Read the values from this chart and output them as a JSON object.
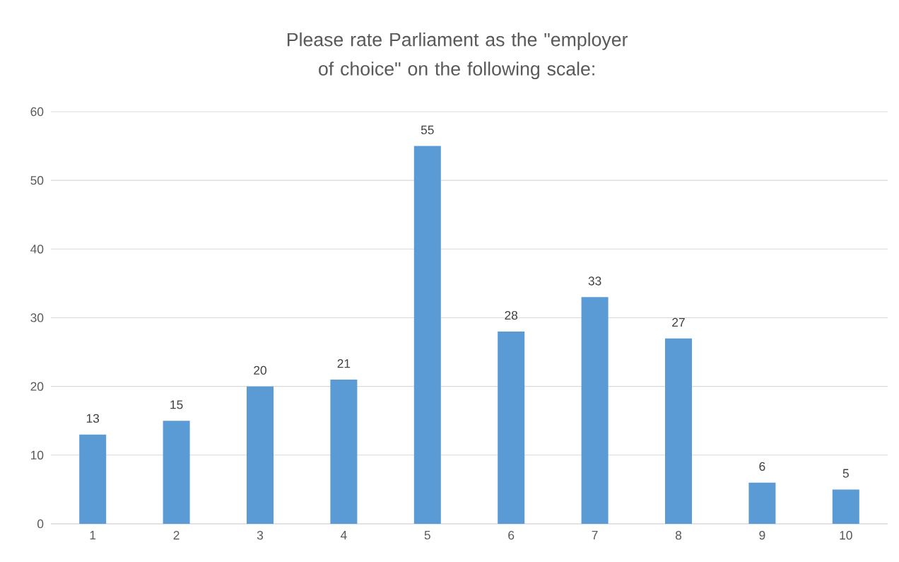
{
  "chart_data": {
    "type": "bar",
    "title": "Please rate Parliament as the \"employer of choice\" on the following scale:",
    "categories": [
      "1",
      "2",
      "3",
      "4",
      "5",
      "6",
      "7",
      "8",
      "9",
      "10"
    ],
    "values": [
      13,
      15,
      20,
      21,
      55,
      28,
      33,
      27,
      6,
      5
    ],
    "color": "#5b9bd5",
    "ylim": [
      0,
      60
    ],
    "yticks": [
      0,
      10,
      20,
      30,
      40,
      50,
      60
    ],
    "grid": "y",
    "data_labels": true
  }
}
